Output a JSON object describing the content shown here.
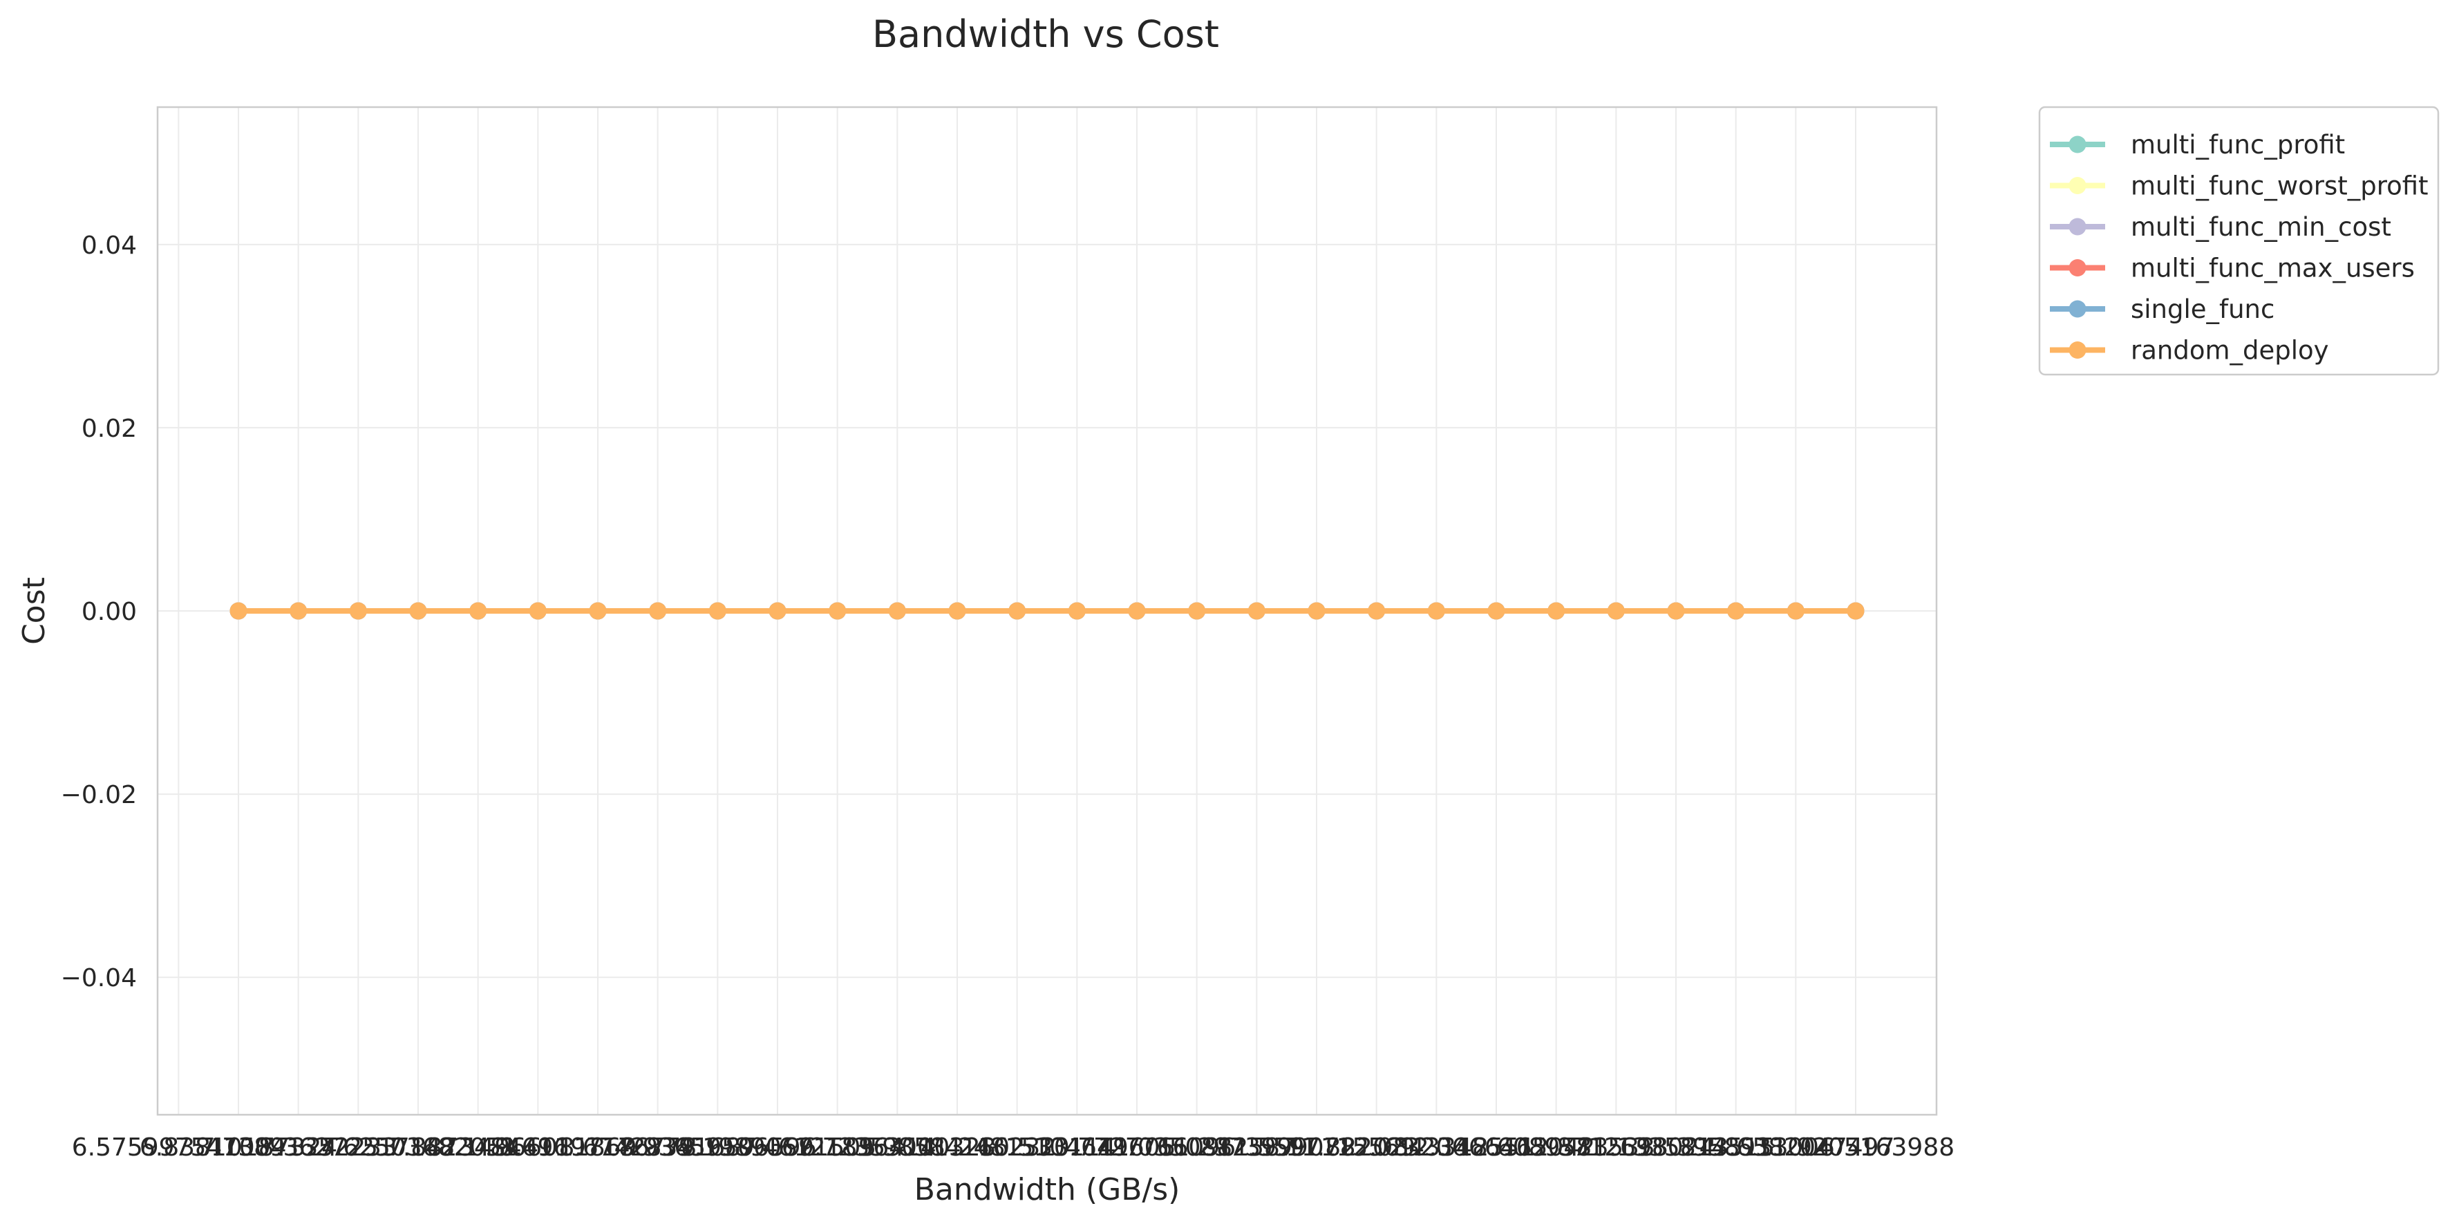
{
  "chart_data": {
    "type": "line",
    "title": "Bandwidth vs Cost",
    "xlabel": "Bandwidth (GB/s)",
    "ylabel": "Cost",
    "x_tick_labels": [
      "6.575997547389",
      "6.83810187324",
      "7.10041352233",
      "7.36272517142",
      "7.62503682051",
      "7.8873484696",
      "8.14966011869",
      "8.41197176778",
      "8.67428341687",
      "8.93659506596",
      "9.19890671505",
      "9.46121836414",
      "9.72353001323",
      "9.98584166232",
      "10.2481533114",
      "10.5104649605",
      "10.7727766096",
      "11.0350882587",
      "11.2973999078",
      "11.5597115569",
      "11.822023206",
      "12.0843348551",
      "12.3466465042",
      "12.6089581533",
      "12.8712698024",
      "13.1335814515",
      "13.3958931006",
      "13.6582047497",
      "13.9205163988"
    ],
    "x": [
      1,
      2,
      3,
      4,
      5,
      6,
      7,
      8,
      9,
      10,
      11,
      12,
      13,
      14,
      15,
      16,
      17,
      18,
      19,
      20,
      21,
      22,
      23,
      24,
      25,
      26,
      27,
      28
    ],
    "xlim": [
      -0.35,
      29.35
    ],
    "y_ticks": [
      0.04,
      0.02,
      0.0,
      -0.02,
      -0.04
    ],
    "y_tick_labels": [
      "0.04",
      "0.02",
      "0.00",
      "−0.02",
      "−0.04"
    ],
    "ylim": [
      -0.055,
      0.055
    ],
    "grid": true,
    "legend_position": "outside-top-right",
    "series": [
      {
        "name": "multi_func_profit",
        "color": "#8dd3c7",
        "values": [
          0,
          0,
          0,
          0,
          0,
          0,
          0,
          0,
          0,
          0,
          0,
          0,
          0,
          0,
          0,
          0,
          0,
          0,
          0,
          0,
          0,
          0,
          0,
          0,
          0,
          0,
          0,
          0
        ]
      },
      {
        "name": "multi_func_worst_profit",
        "color": "#ffffb3",
        "values": [
          0,
          0,
          0,
          0,
          0,
          0,
          0,
          0,
          0,
          0,
          0,
          0,
          0,
          0,
          0,
          0,
          0,
          0,
          0,
          0,
          0,
          0,
          0,
          0,
          0,
          0,
          0,
          0
        ]
      },
      {
        "name": "multi_func_min_cost",
        "color": "#bebada",
        "values": [
          0,
          0,
          0,
          0,
          0,
          0,
          0,
          0,
          0,
          0,
          0,
          0,
          0,
          0,
          0,
          0,
          0,
          0,
          0,
          0,
          0,
          0,
          0,
          0,
          0,
          0,
          0,
          0
        ]
      },
      {
        "name": "multi_func_max_users",
        "color": "#fb8072",
        "values": [
          0,
          0,
          0,
          0,
          0,
          0,
          0,
          0,
          0,
          0,
          0,
          0,
          0,
          0,
          0,
          0,
          0,
          0,
          0,
          0,
          0,
          0,
          0,
          0,
          0,
          0,
          0,
          0
        ]
      },
      {
        "name": "single_func",
        "color": "#80b1d3",
        "values": [
          0,
          0,
          0,
          0,
          0,
          0,
          0,
          0,
          0,
          0,
          0,
          0,
          0,
          0,
          0,
          0,
          0,
          0,
          0,
          0,
          0,
          0,
          0,
          0,
          0,
          0,
          0,
          0
        ]
      },
      {
        "name": "random_deploy",
        "color": "#fdb462",
        "values": [
          0,
          0,
          0,
          0,
          0,
          0,
          0,
          0,
          0,
          0,
          0,
          0,
          0,
          0,
          0,
          0,
          0,
          0,
          0,
          0,
          0,
          0,
          0,
          0,
          0,
          0,
          0,
          0
        ]
      }
    ]
  }
}
